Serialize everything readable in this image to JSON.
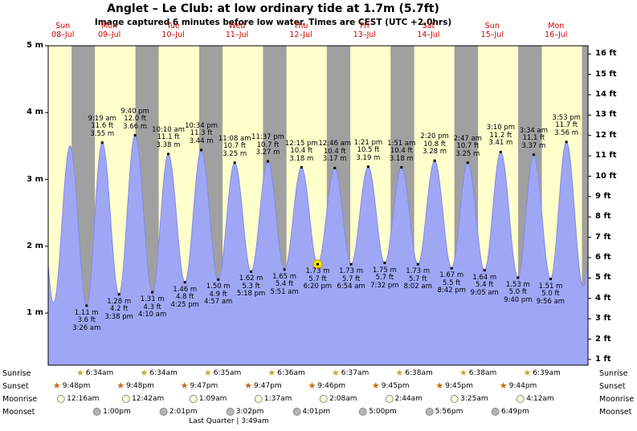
{
  "title": "Anglet – Le Club: at low  ordinary tide at 1.7m (5.7ft)",
  "subtitle": "Image captured 6 minutes before low water. Times are CEST (UTC +2.0hrs)",
  "colors": {
    "day_bg": "#ffffcc",
    "night_bg": "#a0a0a0",
    "tide_fill": "#9fa7f5",
    "tide_stroke": "#8289e8",
    "day_label": "#cc0000",
    "highlight": "#ffe400",
    "highlight_ring": "#c79a00"
  },
  "chart_data": {
    "type": "area",
    "title": "Anglet – Le Club tide height curve",
    "x_unit": "time (Sun 08-Jul afternoon through Mon 16-Jul)",
    "y_left_unit": "m",
    "y_right_unit": "ft",
    "y_left_ticks": [
      "1 m",
      "2 m",
      "3 m",
      "4 m",
      "5 m"
    ],
    "y_right_ticks": [
      "1 ft",
      "2 ft",
      "3 ft",
      "4 ft",
      "5 ft",
      "6 ft",
      "7 ft",
      "8 ft",
      "9 ft",
      "10 ft",
      "11 ft",
      "12 ft",
      "13 ft",
      "14 ft",
      "15 ft",
      "16 ft"
    ],
    "days": [
      {
        "name": "Sun",
        "date": "08–Jul"
      },
      {
        "name": "Mon",
        "date": "09–Jul"
      },
      {
        "name": "Tue",
        "date": "10–Jul"
      },
      {
        "name": "Wed",
        "date": "11–Jul"
      },
      {
        "name": "Thu",
        "date": "12–Jul"
      },
      {
        "name": "Fri",
        "date": "13–Jul"
      },
      {
        "name": "Sat",
        "date": "14–Jul"
      },
      {
        "name": "Sun",
        "date": "15–Jul"
      },
      {
        "name": "Mon",
        "date": "16–Jul"
      }
    ],
    "extrema": [
      {
        "type": "low",
        "day": 1,
        "time": "3:26 am",
        "m": "1.11 m",
        "ft": "3.6 ft"
      },
      {
        "type": "high",
        "day": 1,
        "time": "9:19 am",
        "ft": "11.6 ft",
        "m": "3.55 m"
      },
      {
        "type": "low",
        "day": 1,
        "time": "3:38 pm",
        "m": "1.28 m",
        "ft": "4.2 ft"
      },
      {
        "type": "high",
        "day": 1,
        "time": "9:40 pm",
        "ft": "12.0 ft",
        "m": "3.66 m"
      },
      {
        "type": "low",
        "day": 2,
        "time": "4:10 am",
        "m": "1.31 m",
        "ft": "4.3 ft"
      },
      {
        "type": "high",
        "day": 2,
        "time": "10:10 am",
        "ft": "11.1 ft",
        "m": "3.38 m"
      },
      {
        "type": "low",
        "day": 2,
        "time": "4:25 pm",
        "m": "1.46 m",
        "ft": "4.8 ft"
      },
      {
        "type": "high",
        "day": 2,
        "time": "10:34 pm",
        "ft": "11.3 ft",
        "m": "3.44 m"
      },
      {
        "type": "low",
        "day": 3,
        "time": "4:57 am",
        "m": "1.50 m",
        "ft": "4.9 ft"
      },
      {
        "type": "high",
        "day": 3,
        "time": "11:08 am",
        "ft": "10.7 ft",
        "m": "3.25 m"
      },
      {
        "type": "low",
        "day": 3,
        "time": "5:18 pm",
        "m": "1.62 m",
        "ft": "5.3 ft"
      },
      {
        "type": "high",
        "day": 3,
        "time": "11:37 pm",
        "ft": "10.7 ft",
        "m": "3.27 m"
      },
      {
        "type": "low",
        "day": 4,
        "time": "5:51 am",
        "m": "1.65 m",
        "ft": "5.4 ft"
      },
      {
        "type": "high",
        "day": 4,
        "time": "12:15 pm",
        "ft": "10.4 ft",
        "m": "3.18 m"
      },
      {
        "type": "low",
        "day": 4,
        "time": "6:20 pm",
        "m": "1.73 m",
        "ft": "5.7 ft",
        "highlight": true
      },
      {
        "type": "high",
        "day": 5,
        "time": "12:46 am",
        "ft": "10.4 ft",
        "m": "3.17 m"
      },
      {
        "type": "low",
        "day": 5,
        "time": "6:54 am",
        "m": "1.73 m",
        "ft": "5.7 ft"
      },
      {
        "type": "high",
        "day": 5,
        "time": "1:21 pm",
        "ft": "10.5 ft",
        "m": "3.19 m"
      },
      {
        "type": "low",
        "day": 5,
        "time": "7:32 pm",
        "m": "1.75 m",
        "ft": "5.7 ft"
      },
      {
        "type": "high",
        "day": 6,
        "time": "1:51 am",
        "ft": "10.4 ft",
        "m": "3.18 m"
      },
      {
        "type": "low",
        "day": 6,
        "time": "8:02 am",
        "m": "1.73 m",
        "ft": "5.7 ft"
      },
      {
        "type": "high",
        "day": 6,
        "time": "2:20 pm",
        "ft": "10.8 ft",
        "m": "3.28 m"
      },
      {
        "type": "low",
        "day": 6,
        "time": "8:42 pm",
        "m": "1.67 m",
        "ft": "5.5 ft"
      },
      {
        "type": "high",
        "day": 7,
        "time": "2:47 am",
        "ft": "10.7 ft",
        "m": "3.25 m"
      },
      {
        "type": "low",
        "day": 7,
        "time": "9:05 am",
        "m": "1.64 m",
        "ft": "5.4 ft"
      },
      {
        "type": "high",
        "day": 7,
        "time": "3:10 pm",
        "ft": "11.2 ft",
        "m": "3.41 m"
      },
      {
        "type": "low",
        "day": 7,
        "time": "9:40 pm",
        "m": "1.53 m",
        "ft": "5.0 ft"
      },
      {
        "type": "high",
        "day": 8,
        "time": "3:34 am",
        "ft": "11.1 ft",
        "m": "3.37 m"
      },
      {
        "type": "low",
        "day": 8,
        "time": "9:56 am",
        "m": "1.51 m",
        "ft": "5.0 ft"
      },
      {
        "type": "high",
        "day": 8,
        "time": "3:53 pm",
        "ft": "11.7 ft",
        "m": "3.56 m"
      }
    ]
  },
  "astro": {
    "rows": [
      {
        "label": "Sunrise",
        "icon_type": "star",
        "icon_color": "#c9a82c",
        "events": [
          {
            "day": 1,
            "time": "6:34am"
          },
          {
            "day": 2,
            "time": "6:34am"
          },
          {
            "day": 3,
            "time": "6:35am"
          },
          {
            "day": 4,
            "time": "6:36am"
          },
          {
            "day": 5,
            "time": "6:37am"
          },
          {
            "day": 6,
            "time": "6:38am"
          },
          {
            "day": 7,
            "time": "6:38am"
          },
          {
            "day": 8,
            "time": "6:39am"
          }
        ]
      },
      {
        "label": "Sunset",
        "icon_type": "star",
        "icon_color": "#c56a10",
        "events": [
          {
            "day": 0,
            "time": "9:48pm"
          },
          {
            "day": 1,
            "time": "9:48pm"
          },
          {
            "day": 2,
            "time": "9:47pm"
          },
          {
            "day": 3,
            "time": "9:47pm"
          },
          {
            "day": 4,
            "time": "9:46pm"
          },
          {
            "day": 5,
            "time": "9:45pm"
          },
          {
            "day": 6,
            "time": "9:45pm"
          },
          {
            "day": 7,
            "time": "9:44pm"
          }
        ]
      },
      {
        "label": "Moonrise",
        "icon_type": "circle",
        "icon_color": "#ffffd6",
        "events": [
          {
            "day": 1,
            "time": "12:16am"
          },
          {
            "day": 2,
            "time": "12:42am"
          },
          {
            "day": 3,
            "time": "1:09am"
          },
          {
            "day": 4,
            "time": "1:37am"
          },
          {
            "day": 5,
            "time": "2:08am"
          },
          {
            "day": 6,
            "time": "2:44am"
          },
          {
            "day": 7,
            "time": "3:25am"
          },
          {
            "day": 8,
            "time": "4:12am"
          }
        ]
      },
      {
        "label": "Moonset",
        "icon_type": "circle",
        "icon_color": "#b5b5b5",
        "events": [
          {
            "day": 1,
            "time": "1:00pm"
          },
          {
            "day": 2,
            "time": "2:01pm"
          },
          {
            "day": 3,
            "time": "3:02pm"
          },
          {
            "day": 4,
            "time": "4:01pm"
          },
          {
            "day": 5,
            "time": "5:00pm"
          },
          {
            "day": 6,
            "time": "5:56pm"
          },
          {
            "day": 7,
            "time": "6:49pm"
          }
        ]
      }
    ],
    "moon_phase": "Last Quarter | 3:49am"
  }
}
